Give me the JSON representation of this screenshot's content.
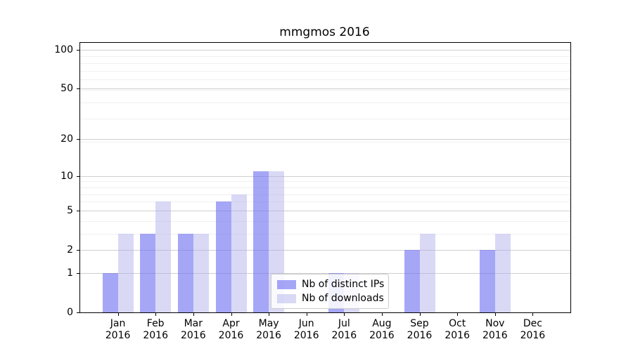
{
  "chart_data": {
    "type": "bar",
    "title": "mmgmos 2016",
    "categories": [
      "Jan",
      "Feb",
      "Mar",
      "Apr",
      "May",
      "Jun",
      "Jul",
      "Aug",
      "Sep",
      "Oct",
      "Nov",
      "Dec"
    ],
    "x_year_label": "2016",
    "series": [
      {
        "name": "Nb of distinct IPs",
        "color": "rgba(112,112,242,0.62)",
        "values": [
          1,
          3,
          3,
          6,
          11,
          0,
          1,
          0,
          2,
          0,
          2,
          0
        ]
      },
      {
        "name": "Nb of downloads",
        "color": "rgba(170,170,235,0.45)",
        "values": [
          3,
          6,
          3,
          7,
          11,
          0,
          1,
          0,
          3,
          0,
          3,
          0
        ]
      }
    ],
    "y_scale": "log10(1+value)",
    "y_major_ticks": [
      0,
      1,
      2,
      5,
      10,
      20,
      50,
      100
    ],
    "y_minor_gridlines_1p": [
      4,
      5,
      7,
      8,
      9,
      10,
      20,
      30,
      40,
      50,
      60,
      70,
      80,
      90
    ],
    "ylim": [
      0,
      113
    ],
    "grid": "horizontal",
    "legend_position": "lower center",
    "colors": {
      "major_grid": "#cfcfcf",
      "minor_grid": "#f0f0f0",
      "axis": "#000000",
      "background": "#ffffff",
      "text": "#000000"
    }
  }
}
